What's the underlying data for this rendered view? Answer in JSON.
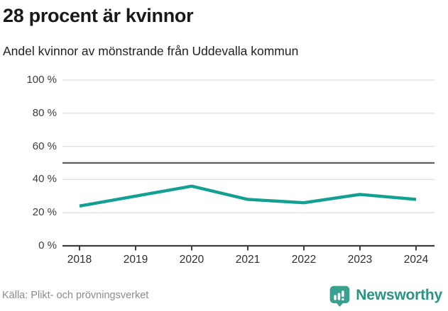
{
  "header": {
    "title": "28 procent är kvinnor",
    "subtitle": "Andel kvinnor av mönstrande från Uddevalla kommun"
  },
  "chart_data": {
    "type": "line",
    "title": "28 procent är kvinnor",
    "subtitle": "Andel kvinnor av mönstrande från Uddevalla kommun",
    "x": [
      2018,
      2019,
      2020,
      2021,
      2022,
      2023,
      2024
    ],
    "x_tick_labels": [
      "2018",
      "2019",
      "2020",
      "2021",
      "2022",
      "2023",
      "2024"
    ],
    "series": [
      {
        "name": "Andel kvinnor av mönstrande",
        "values": [
          24,
          30,
          36,
          28,
          26,
          31,
          28
        ]
      }
    ],
    "ylim": [
      0,
      100
    ],
    "y_ticks": [
      0,
      20,
      40,
      60,
      80,
      100
    ],
    "y_tick_labels": [
      "0 %",
      "20 %",
      "40 %",
      "60 %",
      "80 %",
      "100 %"
    ],
    "reference_line": 50,
    "grid": true,
    "legend": "none",
    "line_color": "#12a092"
  },
  "footer": {
    "source": "Källa: Plikt- och prövningsverket",
    "brand_label": "Newsworthy"
  },
  "colors": {
    "accent_line": "#12a092",
    "reference_line": "#5f5f5f",
    "gridline": "#e1e1e1",
    "axis": "#3d3d3d",
    "title_text": "#191919",
    "body_text": "#1f1f1f",
    "muted_text": "#8c8c8c",
    "brand_teal": "#38a08e",
    "brand_text": "#2c9384"
  }
}
